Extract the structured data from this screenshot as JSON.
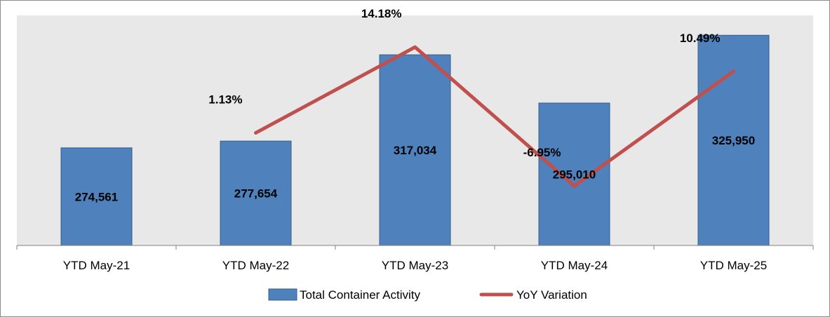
{
  "chart_data": {
    "type": "bar",
    "categories": [
      "YTD May-21",
      "YTD May-22",
      "YTD May-23",
      "YTD May-24",
      "YTD May-25"
    ],
    "series": [
      {
        "name": "Total Container Activity",
        "type": "bar",
        "axis": "primary",
        "color": "#4f81bd",
        "values": [
          274561,
          277654,
          317034,
          295010,
          325950
        ],
        "labels": [
          "274,561",
          "277,654",
          "317,034",
          "295,010",
          "325,950"
        ]
      },
      {
        "name": "YoY Variation",
        "type": "line",
        "axis": "secondary",
        "color": "#c0504d",
        "values": [
          null,
          1.13,
          14.18,
          -6.95,
          10.49
        ],
        "labels": [
          "",
          "1.13%",
          "14.18%",
          "-6.95%",
          "10.49%"
        ]
      }
    ],
    "primary_ylim": [
      230000,
      335000
    ],
    "secondary_ylim": [
      -16,
      19
    ],
    "grid": false,
    "plot_background": "#e8e8e8",
    "legend": {
      "position": "bottom"
    }
  }
}
